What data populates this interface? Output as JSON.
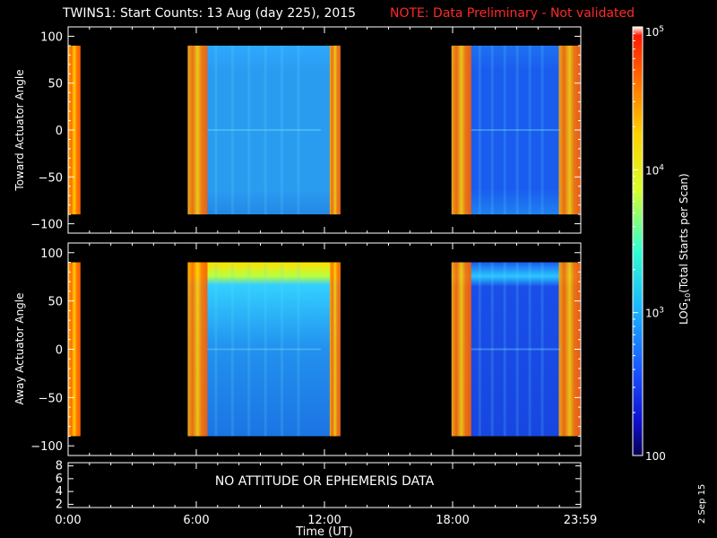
{
  "header": {
    "title": "TWINS1: Start Counts: 13 Aug (day 225), 2015",
    "note": "NOTE: Data Preliminary - Not validated"
  },
  "side_label": "2 Sep 15",
  "colors": {
    "background": "#000000",
    "axes": "#ffffff",
    "note_red": "#ff2a2a"
  },
  "chart_data": [
    {
      "type": "heatmap",
      "panel": "top",
      "ylabel": "Toward Actuator Angle",
      "xlim": [
        0,
        24
      ],
      "ylim": [
        -110,
        110
      ],
      "data_range_y": [
        -90,
        90
      ],
      "yticks": [
        -100,
        -50,
        0,
        50,
        100
      ],
      "grid": false,
      "segments": [
        {
          "t_start": 0.0,
          "t_end": 0.58,
          "level": "high"
        },
        {
          "t_start": 5.6,
          "t_end": 12.75,
          "level": "medium"
        },
        {
          "t_start": 17.95,
          "t_end": 23.98,
          "level": "medium-low"
        }
      ]
    },
    {
      "type": "heatmap",
      "panel": "middle",
      "ylabel": "Away Actuator Angle",
      "xlim": [
        0,
        24
      ],
      "ylim": [
        -110,
        110
      ],
      "data_range_y": [
        -90,
        90
      ],
      "yticks": [
        -100,
        -50,
        0,
        50,
        100
      ],
      "grid": false,
      "segments": [
        {
          "t_start": 0.0,
          "t_end": 0.58,
          "level": "high"
        },
        {
          "t_start": 5.6,
          "t_end": 12.75,
          "level": "medium"
        },
        {
          "t_start": 17.95,
          "t_end": 23.98,
          "level": "medium-low"
        }
      ]
    },
    {
      "type": "line",
      "panel": "bottom",
      "ylim": [
        1.5,
        8.5
      ],
      "yticks": [
        2,
        4,
        6,
        8
      ],
      "message": "NO ATTITUDE OR EPHEMERIS DATA",
      "xlabel": "Time (UT)",
      "xticks": [
        0,
        6,
        12,
        18,
        23.98
      ],
      "xtick_labels": [
        "0:00",
        "6:00",
        "12:00",
        "18:00",
        "23:59"
      ]
    },
    {
      "type": "heatmap",
      "panel": "colorbar",
      "scale": "log",
      "range": [
        100,
        100000
      ],
      "tick_labels": [
        "100",
        "10",
        "10",
        "10"
      ],
      "tick_exponents": [
        "",
        "3",
        "4",
        "5"
      ],
      "label_main": "LOG",
      "label_sub": "10",
      "label_rest": "(Total Starts per Scan)"
    }
  ]
}
